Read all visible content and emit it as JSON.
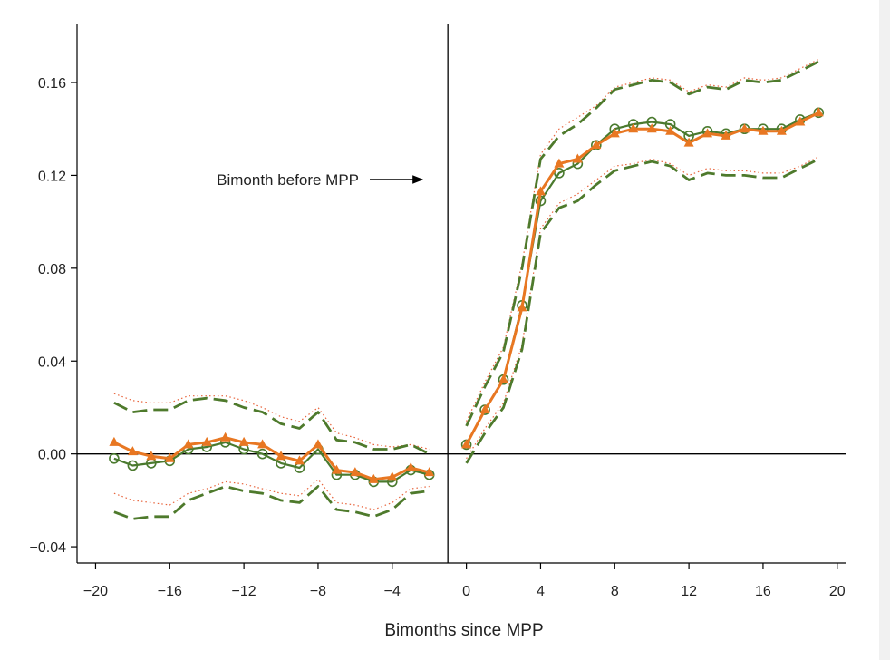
{
  "chart_data": {
    "type": "line",
    "title": "",
    "xlabel": "Bimonths since MPP",
    "ylabel": "",
    "xlim": [
      -21,
      20.5
    ],
    "ylim": [
      -0.047,
      0.185
    ],
    "xticks": [
      -20,
      -16,
      -12,
      -8,
      -4,
      0,
      4,
      8,
      12,
      16,
      20
    ],
    "xtick_labels": [
      "−20",
      "−16",
      "−12",
      "−8",
      "−4",
      "0",
      "4",
      "8",
      "12",
      "16",
      "20"
    ],
    "yticks": [
      -0.04,
      0.0,
      0.04,
      0.08,
      0.12,
      0.16
    ],
    "ytick_labels": [
      "−0.04",
      "0.00",
      "0.04",
      "0.08",
      "0.12",
      "0.16"
    ],
    "reference_lines": {
      "x": -1,
      "y": 0
    },
    "annotation": {
      "text": "Bimonth before MPP",
      "x": -1,
      "y": 0.12
    },
    "grid": false,
    "colors": {
      "orange": "#e87722",
      "green": "#4a7a2e",
      "dashed_green": "#4e7a2c",
      "dotted_red": "#e8643c",
      "axis": "#000000"
    },
    "series": [
      {
        "style": "orange-triangle",
        "segments": [
          {
            "x": [
              -19,
              -18,
              -17,
              -16,
              -15,
              -14,
              -13,
              -12,
              -11,
              -10,
              -9,
              -8,
              -7,
              -6,
              -5,
              -4,
              -3,
              -2
            ],
            "y": [
              0.005,
              0.001,
              -0.001,
              -0.002,
              0.004,
              0.005,
              0.007,
              0.005,
              0.004,
              -0.001,
              -0.003,
              0.004,
              -0.007,
              -0.008,
              -0.011,
              -0.01,
              -0.006,
              -0.008
            ]
          },
          {
            "x": [
              0,
              1,
              2,
              3,
              4,
              5,
              6,
              7,
              8,
              9,
              10,
              11,
              12,
              13,
              14,
              15,
              16,
              17,
              18,
              19
            ],
            "y": [
              0.004,
              0.019,
              0.032,
              0.063,
              0.113,
              0.125,
              0.127,
              0.133,
              0.138,
              0.14,
              0.14,
              0.139,
              0.134,
              0.138,
              0.137,
              0.14,
              0.139,
              0.139,
              0.143,
              0.147
            ]
          }
        ]
      },
      {
        "style": "green-circle",
        "segments": [
          {
            "x": [
              -19,
              -18,
              -17,
              -16,
              -15,
              -14,
              -13,
              -12,
              -11,
              -10,
              -9,
              -8,
              -7,
              -6,
              -5,
              -4,
              -3,
              -2
            ],
            "y": [
              -0.002,
              -0.005,
              -0.004,
              -0.003,
              0.002,
              0.003,
              0.005,
              0.002,
              0.0,
              -0.004,
              -0.006,
              0.002,
              -0.009,
              -0.009,
              -0.012,
              -0.012,
              -0.007,
              -0.009
            ]
          },
          {
            "x": [
              0,
              1,
              2,
              3,
              4,
              5,
              6,
              7,
              8,
              9,
              10,
              11,
              12,
              13,
              14,
              15,
              16,
              17,
              18,
              19
            ],
            "y": [
              0.004,
              0.019,
              0.032,
              0.064,
              0.109,
              0.121,
              0.125,
              0.133,
              0.14,
              0.142,
              0.143,
              0.142,
              0.137,
              0.139,
              0.138,
              0.14,
              0.14,
              0.14,
              0.144,
              0.147
            ]
          }
        ]
      },
      {
        "style": "green-dashed-upper",
        "segments": [
          {
            "x": [
              -19,
              -18,
              -17,
              -16,
              -15,
              -14,
              -13,
              -12,
              -11,
              -10,
              -9,
              -8,
              -7,
              -6,
              -5,
              -4,
              -3,
              -2
            ],
            "y": [
              0.022,
              0.018,
              0.019,
              0.019,
              0.023,
              0.024,
              0.023,
              0.02,
              0.018,
              0.013,
              0.011,
              0.018,
              0.006,
              0.005,
              0.002,
              0.002,
              0.004,
              0.0
            ]
          },
          {
            "x": [
              0,
              1,
              2,
              3,
              4,
              5,
              6,
              7,
              8,
              9,
              10,
              11,
              12,
              13,
              14,
              15,
              16,
              17,
              18,
              19
            ],
            "y": [
              0.012,
              0.029,
              0.044,
              0.08,
              0.127,
              0.137,
              0.142,
              0.149,
              0.157,
              0.159,
              0.161,
              0.16,
              0.155,
              0.158,
              0.157,
              0.161,
              0.16,
              0.161,
              0.165,
              0.169
            ]
          }
        ]
      },
      {
        "style": "green-dashed-lower",
        "segments": [
          {
            "x": [
              -19,
              -18,
              -17,
              -16,
              -15,
              -14,
              -13,
              -12,
              -11,
              -10,
              -9,
              -8,
              -7,
              -6,
              -5,
              -4,
              -3,
              -2
            ],
            "y": [
              -0.025,
              -0.028,
              -0.027,
              -0.027,
              -0.02,
              -0.017,
              -0.014,
              -0.016,
              -0.017,
              -0.02,
              -0.021,
              -0.014,
              -0.024,
              -0.025,
              -0.027,
              -0.024,
              -0.017,
              -0.016
            ]
          },
          {
            "x": [
              0,
              1,
              2,
              3,
              4,
              5,
              6,
              7,
              8,
              9,
              10,
              11,
              12,
              13,
              14,
              15,
              16,
              17,
              18,
              19
            ],
            "y": [
              -0.004,
              0.009,
              0.02,
              0.045,
              0.095,
              0.106,
              0.109,
              0.116,
              0.122,
              0.124,
              0.126,
              0.124,
              0.118,
              0.121,
              0.12,
              0.12,
              0.119,
              0.119,
              0.123,
              0.127
            ]
          }
        ]
      },
      {
        "style": "red-dotted-upper",
        "segments": [
          {
            "x": [
              -19,
              -18,
              -17,
              -16,
              -15,
              -14,
              -13,
              -12,
              -11,
              -10,
              -9,
              -8,
              -7,
              -6,
              -5,
              -4,
              -3,
              -2
            ],
            "y": [
              0.026,
              0.023,
              0.022,
              0.022,
              0.025,
              0.025,
              0.025,
              0.023,
              0.02,
              0.016,
              0.014,
              0.02,
              0.009,
              0.007,
              0.004,
              0.003,
              0.004,
              0.002
            ]
          },
          {
            "x": [
              0,
              1,
              2,
              3,
              4,
              5,
              6,
              7,
              8,
              9,
              10,
              11,
              12,
              13,
              14,
              15,
              16,
              17,
              18,
              19
            ],
            "y": [
              0.014,
              0.031,
              0.046,
              0.082,
              0.129,
              0.14,
              0.145,
              0.15,
              0.158,
              0.16,
              0.162,
              0.161,
              0.156,
              0.159,
              0.158,
              0.162,
              0.161,
              0.162,
              0.166,
              0.17
            ]
          }
        ]
      },
      {
        "style": "red-dotted-lower",
        "segments": [
          {
            "x": [
              -19,
              -18,
              -17,
              -16,
              -15,
              -14,
              -13,
              -12,
              -11,
              -10,
              -9,
              -8,
              -7,
              -6,
              -5,
              -4,
              -3,
              -2
            ],
            "y": [
              -0.017,
              -0.02,
              -0.021,
              -0.022,
              -0.017,
              -0.015,
              -0.012,
              -0.013,
              -0.015,
              -0.017,
              -0.018,
              -0.011,
              -0.021,
              -0.022,
              -0.024,
              -0.021,
              -0.015,
              -0.014
            ]
          },
          {
            "x": [
              0,
              1,
              2,
              3,
              4,
              5,
              6,
              7,
              8,
              9,
              10,
              11,
              12,
              13,
              14,
              15,
              16,
              17,
              18,
              19
            ],
            "y": [
              -0.002,
              0.011,
              0.022,
              0.047,
              0.097,
              0.108,
              0.112,
              0.118,
              0.124,
              0.125,
              0.127,
              0.125,
              0.12,
              0.123,
              0.122,
              0.122,
              0.121,
              0.121,
              0.124,
              0.128
            ]
          }
        ]
      }
    ]
  }
}
